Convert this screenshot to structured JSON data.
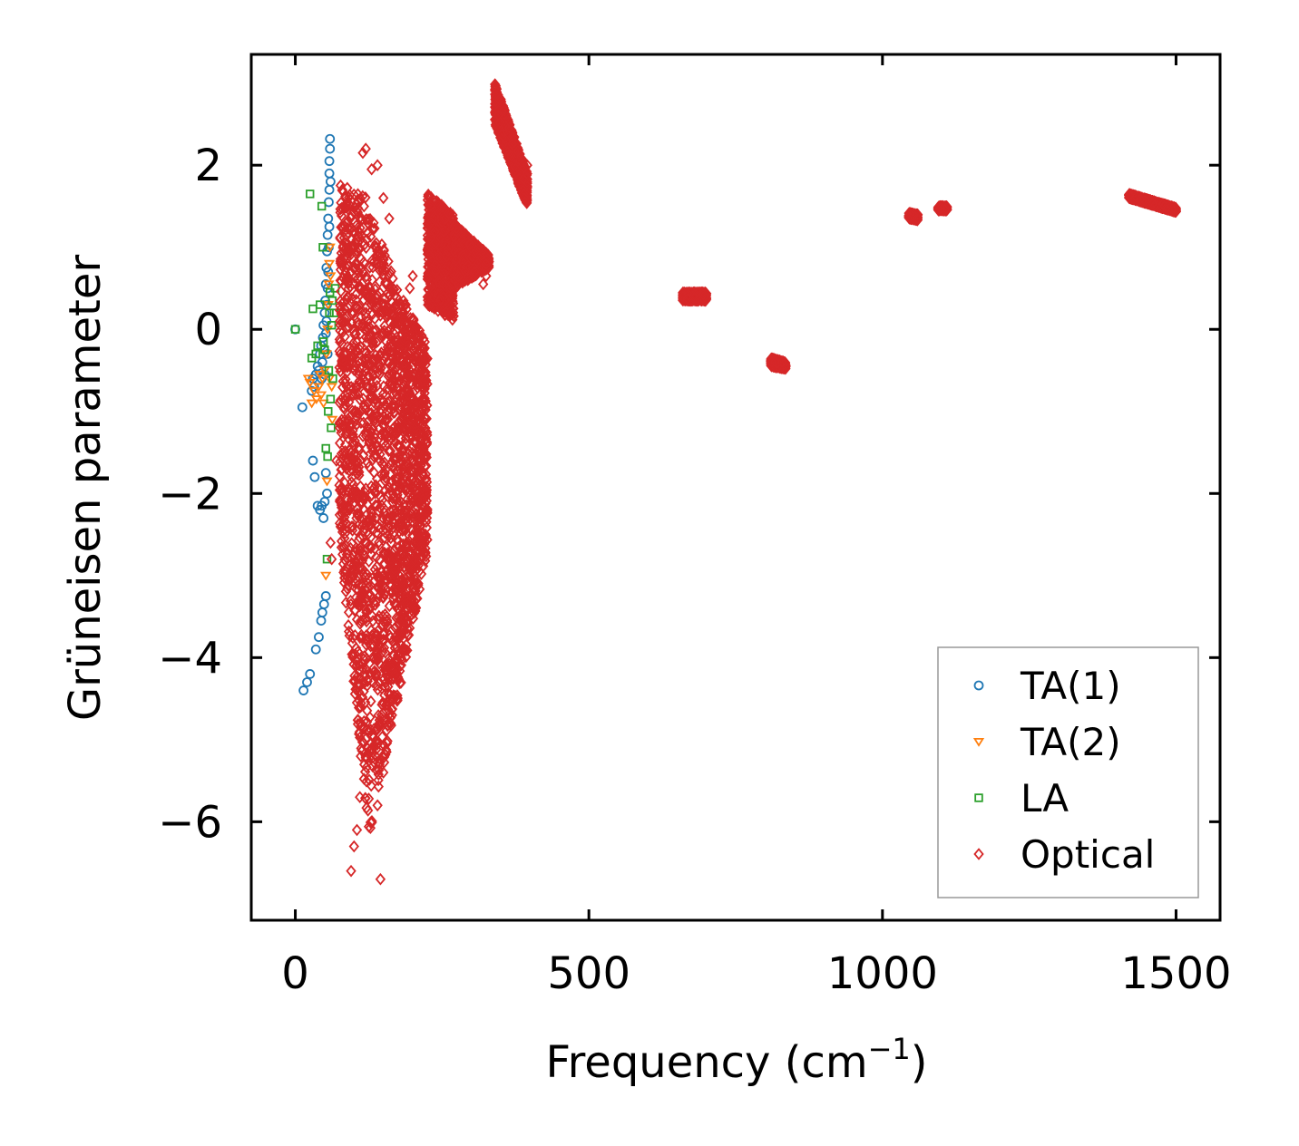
{
  "chart_data": {
    "type": "scatter",
    "title": "",
    "xlabel": "Frequency (cm",
    "xlabel_sup": "−1",
    "xlabel_close": ")",
    "ylabel": "Grüneisen parameter",
    "xlim": [
      -75,
      1575
    ],
    "ylim": [
      -7.2,
      3.35
    ],
    "xticks": [
      0,
      500,
      1000,
      1500
    ],
    "xtick_labels": [
      "0",
      "500",
      "1000",
      "1500"
    ],
    "yticks": [
      -6,
      -4,
      -2,
      0,
      2
    ],
    "ytick_labels": [
      "−6",
      "−4",
      "−2",
      "0",
      "2"
    ],
    "grid": false,
    "legend_position": "bottom-right",
    "series": [
      {
        "name": "TA(1)",
        "marker": "circle",
        "color": "#1f77b4",
        "points": [
          [
            0,
            0
          ],
          [
            12,
            -0.95
          ],
          [
            14,
            -4.4
          ],
          [
            20,
            -4.3
          ],
          [
            25,
            -4.2
          ],
          [
            30,
            -1.6
          ],
          [
            33,
            -1.8
          ],
          [
            35,
            -3.9
          ],
          [
            38,
            -2.15
          ],
          [
            40,
            -3.75
          ],
          [
            42,
            -2.2
          ],
          [
            44,
            -3.55
          ],
          [
            45,
            -2.15
          ],
          [
            46,
            -3.45
          ],
          [
            48,
            -2.3
          ],
          [
            49,
            -3.35
          ],
          [
            50,
            -2.1
          ],
          [
            52,
            -3.25
          ],
          [
            52,
            -1.75
          ],
          [
            54,
            -2.0
          ],
          [
            28,
            -0.75
          ],
          [
            30,
            -0.6
          ],
          [
            32,
            -0.7
          ],
          [
            35,
            -0.55
          ],
          [
            38,
            -0.45
          ],
          [
            40,
            -0.5
          ],
          [
            42,
            -0.3
          ],
          [
            44,
            -0.2
          ],
          [
            45,
            -0.6
          ],
          [
            46,
            -0.4
          ],
          [
            47,
            -0.1
          ],
          [
            48,
            0.05
          ],
          [
            49,
            -0.25
          ],
          [
            50,
            0.2
          ],
          [
            50,
            -0.55
          ],
          [
            51,
            0.35
          ],
          [
            52,
            0.55
          ],
          [
            52,
            -0.05
          ],
          [
            53,
            0.75
          ],
          [
            53,
            0.1
          ],
          [
            54,
            0.95
          ],
          [
            54,
            0.3
          ],
          [
            55,
            1.15
          ],
          [
            55,
            0.5
          ],
          [
            55,
            -0.3
          ],
          [
            56,
            1.35
          ],
          [
            56,
            0.7
          ],
          [
            57,
            1.55
          ],
          [
            57,
            1.0
          ],
          [
            58,
            1.7
          ],
          [
            58,
            1.25
          ],
          [
            58,
            1.9
          ],
          [
            58,
            2.05
          ],
          [
            59,
            2.2
          ],
          [
            59,
            2.32
          ],
          [
            60,
            1.8
          ]
        ]
      },
      {
        "name": "TA(2)",
        "marker": "triangle",
        "color": "#ff7f0e",
        "points": [
          [
            22,
            -0.6
          ],
          [
            25,
            -0.65
          ],
          [
            28,
            -0.9
          ],
          [
            32,
            -0.75
          ],
          [
            36,
            -0.85
          ],
          [
            40,
            -0.7
          ],
          [
            42,
            -0.55
          ],
          [
            44,
            -0.8
          ],
          [
            46,
            -0.6
          ],
          [
            48,
            -0.9
          ],
          [
            50,
            -0.5
          ],
          [
            52,
            -3.0
          ],
          [
            53,
            -0.3
          ],
          [
            54,
            -1.85
          ],
          [
            55,
            0.0
          ],
          [
            56,
            0.3
          ],
          [
            57,
            0.55
          ],
          [
            58,
            0.8
          ],
          [
            58,
            -0.6
          ],
          [
            59,
            1.0
          ],
          [
            60,
            0.65
          ],
          [
            62,
            -0.7
          ],
          [
            63,
            -1.1
          ]
        ]
      },
      {
        "name": "LA",
        "marker": "square",
        "color": "#2ca02c",
        "points": [
          [
            0,
            0
          ],
          [
            25,
            1.65
          ],
          [
            28,
            -0.35
          ],
          [
            30,
            0.25
          ],
          [
            35,
            -0.3
          ],
          [
            38,
            -0.2
          ],
          [
            42,
            0.3
          ],
          [
            45,
            1.5
          ],
          [
            47,
            1.0
          ],
          [
            48,
            -0.15
          ],
          [
            50,
            -0.25
          ],
          [
            52,
            -1.45
          ],
          [
            54,
            -2.8
          ],
          [
            55,
            -1.55
          ],
          [
            56,
            -1.0
          ],
          [
            57,
            -0.5
          ],
          [
            58,
            0.2
          ],
          [
            59,
            0.45
          ],
          [
            60,
            -0.85
          ],
          [
            61,
            -1.2
          ],
          [
            62,
            0.05
          ],
          [
            63,
            0.35
          ],
          [
            64,
            -0.6
          ],
          [
            66,
            0.2
          ],
          [
            68,
            0.5
          ]
        ]
      },
      {
        "name": "Optical",
        "marker": "diamond",
        "color": "#d62728",
        "scatter_points": [
          [
            120,
            2.2
          ],
          [
            115,
            2.15
          ],
          [
            130,
            1.95
          ],
          [
            140,
            2.0
          ],
          [
            150,
            1.6
          ],
          [
            160,
            1.35
          ],
          [
            95,
            -6.6
          ],
          [
            145,
            -6.7
          ],
          [
            100,
            -6.3
          ],
          [
            105,
            -6.1
          ],
          [
            110,
            -5.7
          ],
          [
            120,
            -5.2
          ],
          [
            140,
            -5.8
          ],
          [
            150,
            -5.4
          ],
          [
            155,
            -4.3
          ],
          [
            170,
            -4.2
          ],
          [
            175,
            -4.25
          ],
          [
            180,
            -4.0
          ],
          [
            200,
            0.65
          ],
          [
            195,
            0.5
          ],
          [
            230,
            1.5
          ],
          [
            255,
            1.2
          ],
          [
            305,
            0.7
          ],
          [
            320,
            0.55
          ],
          [
            325,
            0.65
          ],
          [
            395,
            2.0
          ],
          [
            390,
            1.6
          ],
          [
            80,
            1.7
          ],
          [
            85,
            1.5
          ],
          [
            70,
            -1.6
          ],
          [
            75,
            -1.9
          ],
          [
            78,
            -2.1
          ],
          [
            60,
            -2.6
          ],
          [
            62,
            -2.8
          ]
        ],
        "bands": [
          {
            "x": [
              75,
              125
            ],
            "y_top": [
              1.8,
              1.6
            ],
            "y_bottom": [
              -2.5,
              -6.2
            ]
          },
          {
            "x": [
              125,
              175
            ],
            "y_top": [
              1.5,
              0.5
            ],
            "y_bottom": [
              -6.2,
              -4.5
            ]
          },
          {
            "x": [
              175,
              225
            ],
            "y_top": [
              0.5,
              -0.2
            ],
            "y_bottom": [
              -4.5,
              -2.7
            ]
          },
          {
            "x": [
              225,
              270
            ],
            "y_top": [
              1.65,
              1.4
            ],
            "y_bottom": [
              0.3,
              0.1
            ]
          },
          {
            "x": [
              270,
              330
            ],
            "y_top": [
              1.3,
              0.9
            ],
            "y_bottom": [
              0.5,
              0.75
            ]
          },
          {
            "x": [
              340,
              395
            ],
            "y_top": [
              3.0,
              1.9
            ],
            "y_bottom": [
              2.5,
              1.5
            ]
          },
          {
            "x": [
              660,
              700
            ],
            "y_top": [
              0.45,
              0.45
            ],
            "y_bottom": [
              0.35,
              0.35
            ]
          },
          {
            "x": [
              810,
              835
            ],
            "y_top": [
              -0.35,
              -0.4
            ],
            "y_bottom": [
              -0.45,
              -0.48
            ]
          },
          {
            "x": [
              1045,
              1060
            ],
            "y_top": [
              1.42,
              1.4
            ],
            "y_bottom": [
              1.35,
              1.33
            ]
          },
          {
            "x": [
              1095,
              1110
            ],
            "y_top": [
              1.5,
              1.5
            ],
            "y_bottom": [
              1.45,
              1.45
            ]
          },
          {
            "x": [
              1420,
              1500
            ],
            "y_top": [
              1.65,
              1.48
            ],
            "y_bottom": [
              1.6,
              1.43
            ]
          }
        ]
      }
    ]
  }
}
